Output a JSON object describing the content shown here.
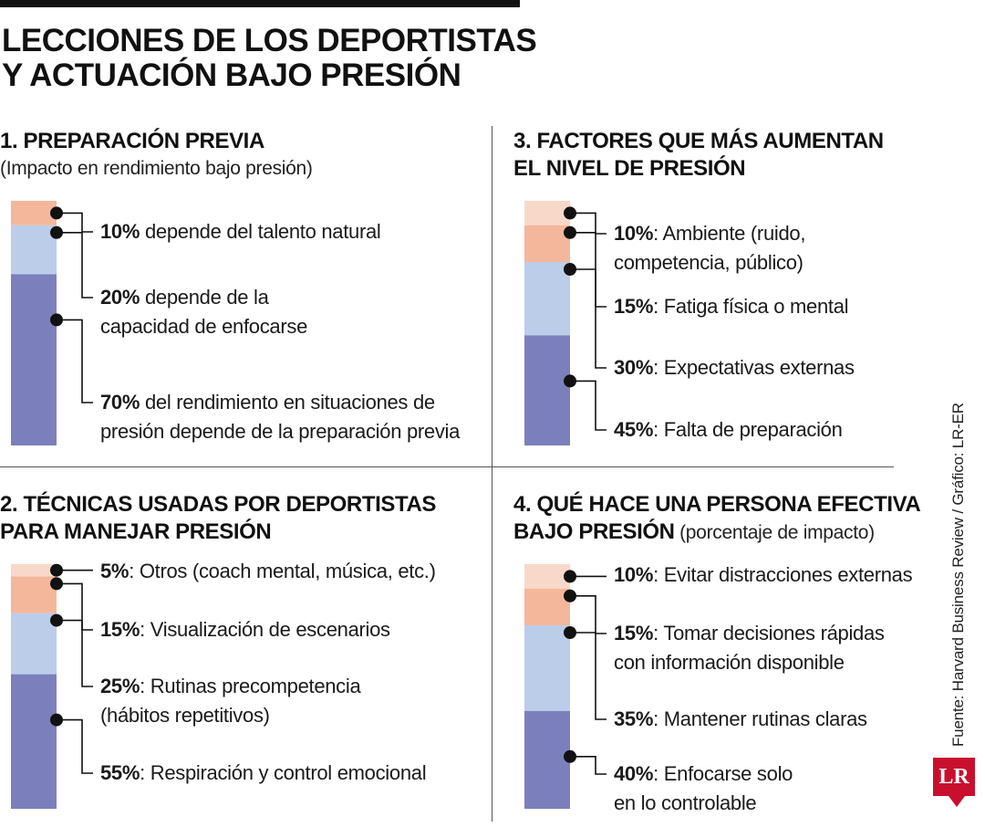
{
  "title_lines": [
    "LECCIONES DE LOS DEPORTISTAS",
    "Y ACTUACIÓN BAJO PRESIÓN"
  ],
  "source": "Fuente: Harvard Business Review / Gráfico: LR-ER",
  "logo_text": "LR",
  "colors": {
    "lightest": "#f8d9c9",
    "peach": "#f4b79b",
    "lightblue": "#bccdea",
    "purple": "#7b80bc",
    "line": "#111111",
    "dot": "#111111"
  },
  "chart_data": [
    {
      "type": "bar",
      "stacked": true,
      "title": "1. PREPARACIÓN PREVIA",
      "subtitle": "(Impacto en rendimiento bajo presión)",
      "segments": [
        {
          "value": 10,
          "pct_label": "10%",
          "text_lines": [
            " depende del talento natural"
          ],
          "color": "peach"
        },
        {
          "value": 20,
          "pct_label": "20%",
          "text_lines": [
            " depende de la",
            "capacidad de enfocarse"
          ],
          "color": "lightblue"
        },
        {
          "value": 70,
          "pct_label": "70%",
          "text_lines": [
            " del rendimiento en situaciones de",
            "presión depende de la preparación previa"
          ],
          "color": "purple"
        }
      ]
    },
    {
      "type": "bar",
      "stacked": true,
      "title": "3. FACTORES QUE MÁS AUMENTAN",
      "title_line2": "EL NIVEL DE PRESIÓN",
      "segments": [
        {
          "value": 10,
          "pct_label": "10%",
          "text_lines": [
            ": Ambiente (ruido,",
            "competencia, público)"
          ],
          "color": "lightest"
        },
        {
          "value": 15,
          "pct_label": "15%",
          "text_lines": [
            ": Fatiga física o mental"
          ],
          "color": "peach"
        },
        {
          "value": 30,
          "pct_label": "30%",
          "text_lines": [
            ": Expectativas externas"
          ],
          "color": "lightblue"
        },
        {
          "value": 45,
          "pct_label": "45%",
          "text_lines": [
            ": Falta de preparación"
          ],
          "color": "purple"
        }
      ]
    },
    {
      "type": "bar",
      "stacked": true,
      "title": "2. TÉCNICAS USADAS POR DEPORTISTAS",
      "title_line2": "PARA MANEJAR PRESIÓN",
      "segments": [
        {
          "value": 5,
          "pct_label": "5%",
          "text_lines": [
            ": Otros (coach mental, música, etc.)"
          ],
          "color": "lightest"
        },
        {
          "value": 15,
          "pct_label": "15%",
          "text_lines": [
            ": Visualización de escenarios"
          ],
          "color": "peach"
        },
        {
          "value": 25,
          "pct_label": "25%",
          "text_lines": [
            ": Rutinas precompetencia",
            "(hábitos repetitivos)"
          ],
          "color": "lightblue"
        },
        {
          "value": 55,
          "pct_label": "55%",
          "text_lines": [
            ": Respiración y control emocional"
          ],
          "color": "purple"
        }
      ]
    },
    {
      "type": "bar",
      "stacked": true,
      "title": "4. QUÉ HACE UNA PERSONA EFECTIVA",
      "title_line2": "BAJO PRESIÓN",
      "title_line2_suffix": " (porcentaje de impacto)",
      "segments": [
        {
          "value": 10,
          "pct_label": "10%",
          "text_lines": [
            ": Evitar distracciones externas"
          ],
          "color": "lightest"
        },
        {
          "value": 15,
          "pct_label": "15%",
          "text_lines": [
            ": Tomar decisiones rápidas",
            "con información disponible"
          ],
          "color": "peach"
        },
        {
          "value": 35,
          "pct_label": "35%",
          "text_lines": [
            ": Mantener rutinas claras"
          ],
          "color": "lightblue"
        },
        {
          "value": 40,
          "pct_label": "40%",
          "text_lines": [
            ": Enfocarse solo",
            "en lo controlable"
          ],
          "color": "purple"
        }
      ]
    }
  ]
}
